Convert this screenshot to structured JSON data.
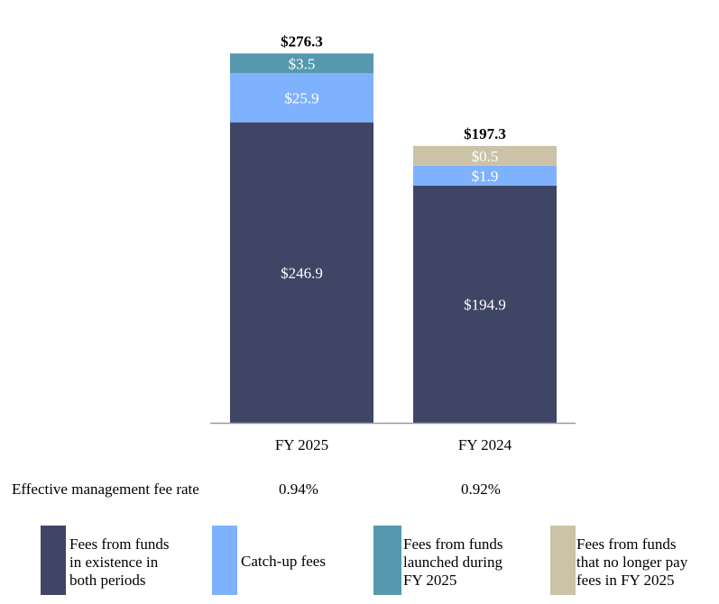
{
  "chart_data": {
    "type": "bar",
    "stacked": true,
    "categories": [
      "FY 2025",
      "FY 2024"
    ],
    "series": [
      {
        "name": "Fees from funds in existence in both periods",
        "color": "#3f4565",
        "values": [
          246.9,
          194.9
        ],
        "labels": [
          "$246.9",
          "$194.9"
        ]
      },
      {
        "name": "Catch-up fees",
        "color": "#7fb2fe",
        "values": [
          25.9,
          1.9
        ],
        "labels": [
          "$25.9",
          "$1.9"
        ]
      },
      {
        "name": "Fees from funds launched during FY 2025",
        "color": "#5699ae",
        "values": [
          3.5,
          null
        ],
        "labels": [
          "$3.5",
          ""
        ]
      },
      {
        "name": "Fees from funds that no longer pay fees in FY 2025",
        "color": "#cbc2a7",
        "values": [
          null,
          0.5
        ],
        "labels": [
          "",
          "$0.5"
        ]
      }
    ],
    "totals": [
      "$276.3",
      "$197.3"
    ],
    "grid": false,
    "legend_placement": "bottom"
  },
  "fee_rate": {
    "label": "Effective management fee rate",
    "values": [
      "0.94%",
      "0.92%"
    ]
  },
  "legend": [
    {
      "lines": [
        "Fees from funds",
        "in existence in",
        "both periods"
      ]
    },
    {
      "lines": [
        "Catch-up fees"
      ]
    },
    {
      "lines": [
        "Fees from funds",
        "launched during",
        "FY 2025"
      ]
    },
    {
      "lines": [
        "Fees from funds",
        "that no longer pay",
        "fees in FY 2025"
      ]
    }
  ]
}
